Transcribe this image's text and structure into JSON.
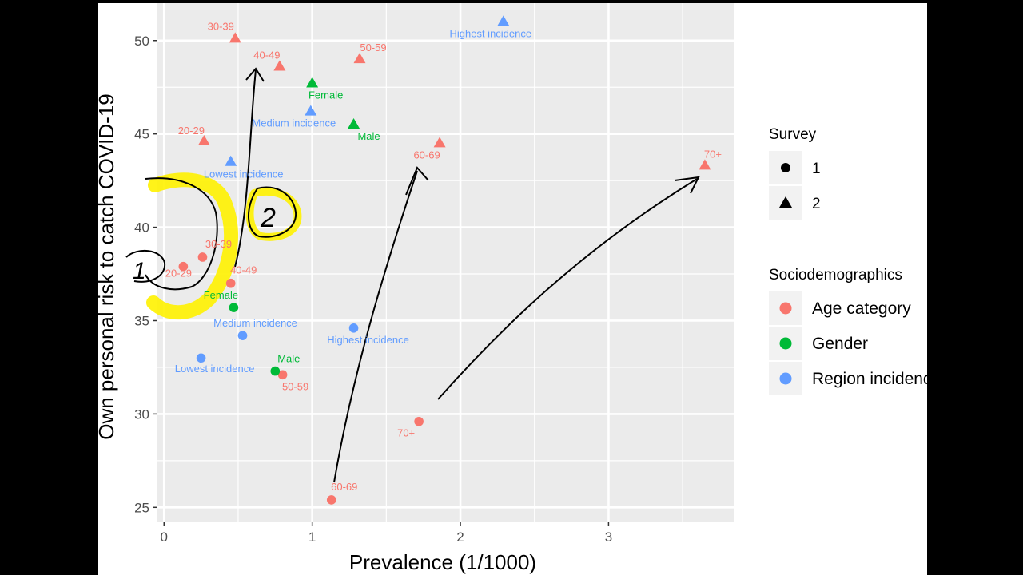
{
  "chart_data": {
    "type": "scatter",
    "xlabel": "Prevalence (1/1000)",
    "ylabel": "Own personal risk to catch COVID-19",
    "xlim": [
      -0.05,
      3.85
    ],
    "ylim": [
      24.2,
      52.0
    ],
    "x_ticks": [
      0,
      1,
      2,
      3
    ],
    "y_ticks": [
      25,
      30,
      35,
      40,
      45,
      50
    ],
    "grid": true,
    "legend_position": "right",
    "legend": {
      "shape": {
        "title": "Survey",
        "items": [
          {
            "label": "1",
            "shape": "circle"
          },
          {
            "label": "2",
            "shape": "triangle"
          }
        ]
      },
      "color": {
        "title": "Sociodemographics",
        "items": [
          {
            "label": "Age category",
            "color": "#F8766D"
          },
          {
            "label": "Gender",
            "color": "#00BA38"
          },
          {
            "label": "Region incidence",
            "color": "#619CFF"
          }
        ]
      }
    },
    "colors": {
      "Age category": "#F8766D",
      "Gender": "#00BA38",
      "Region incidence": "#619CFF"
    },
    "points": [
      {
        "survey": "1",
        "group": "Age category",
        "label": "20-29",
        "x": 0.13,
        "y": 37.9
      },
      {
        "survey": "1",
        "group": "Age category",
        "label": "30-39",
        "x": 0.26,
        "y": 38.4
      },
      {
        "survey": "1",
        "group": "Age category",
        "label": "40-49",
        "x": 0.45,
        "y": 37.0
      },
      {
        "survey": "1",
        "group": "Age category",
        "label": "50-59",
        "x": 0.8,
        "y": 32.1
      },
      {
        "survey": "1",
        "group": "Age category",
        "label": "60-69",
        "x": 1.13,
        "y": 25.4
      },
      {
        "survey": "1",
        "group": "Age category",
        "label": "70+",
        "x": 1.72,
        "y": 29.6
      },
      {
        "survey": "1",
        "group": "Gender",
        "label": "Female",
        "x": 0.47,
        "y": 35.7
      },
      {
        "survey": "1",
        "group": "Gender",
        "label": "Male",
        "x": 0.75,
        "y": 32.3
      },
      {
        "survey": "1",
        "group": "Region incidence",
        "label": "Lowest incidence",
        "x": 0.25,
        "y": 33.0
      },
      {
        "survey": "1",
        "group": "Region incidence",
        "label": "Medium incidence",
        "x": 0.53,
        "y": 34.2
      },
      {
        "survey": "1",
        "group": "Region incidence",
        "label": "Highest incidence",
        "x": 1.28,
        "y": 34.6
      },
      {
        "survey": "2",
        "group": "Age category",
        "label": "20-29",
        "x": 0.27,
        "y": 44.6
      },
      {
        "survey": "2",
        "group": "Age category",
        "label": "30-39",
        "x": 0.48,
        "y": 50.1
      },
      {
        "survey": "2",
        "group": "Age category",
        "label": "40-49",
        "x": 0.78,
        "y": 48.6
      },
      {
        "survey": "2",
        "group": "Age category",
        "label": "50-59",
        "x": 1.32,
        "y": 49.0
      },
      {
        "survey": "2",
        "group": "Age category",
        "label": "60-69",
        "x": 1.86,
        "y": 44.5
      },
      {
        "survey": "2",
        "group": "Age category",
        "label": "70+",
        "x": 3.65,
        "y": 43.3
      },
      {
        "survey": "2",
        "group": "Gender",
        "label": "Female",
        "x": 1.0,
        "y": 47.7
      },
      {
        "survey": "2",
        "group": "Gender",
        "label": "Male",
        "x": 1.28,
        "y": 45.5
      },
      {
        "survey": "2",
        "group": "Region incidence",
        "label": "Lowest incidence",
        "x": 0.45,
        "y": 43.5
      },
      {
        "survey": "2",
        "group": "Region incidence",
        "label": "Medium incidence",
        "x": 0.99,
        "y": 46.2
      },
      {
        "survey": "2",
        "group": "Region incidence",
        "label": "Highest incidence",
        "x": 2.29,
        "y": 51.0
      }
    ],
    "annotations": {
      "handwritten": [
        "1",
        "2"
      ],
      "arrows": [
        {
          "from": "40-49 survey 1",
          "to": "40-49 survey 2"
        },
        {
          "from": "60-69 survey 1",
          "to": "60-69 survey 2"
        },
        {
          "from": "70+ survey 1",
          "to": "70+ survey 2"
        }
      ]
    }
  }
}
